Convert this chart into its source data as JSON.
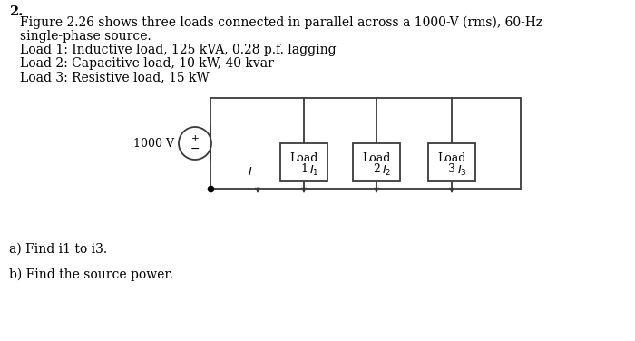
{
  "title_number": "2.",
  "line1": "Figure 2.26 shows three loads connected in parallel across a 1000-V (rms), 60-Hz",
  "line2": "single-phase source.",
  "load1": "Load 1: Inductive load, 125 kVA, 0.28 p.f. lagging",
  "load2": "Load 2: Capacitive load, 10 kW, 40 kvar",
  "load3": "Load 3: Resistive load, 15 kW",
  "question_a": "a) Find i1 to i3.",
  "question_b": "b) Find the source power.",
  "bg_color": "#ffffff",
  "text_color": "#000000",
  "circuit_line_color": "#3a3a3a",
  "source_label": "1000 V",
  "load_labels": [
    "Load\n1",
    "Load\n2",
    "Load\n3"
  ],
  "font_size_title": 10.5,
  "font_size_body": 10,
  "font_size_circuit": 9,
  "font_size_question": 10
}
